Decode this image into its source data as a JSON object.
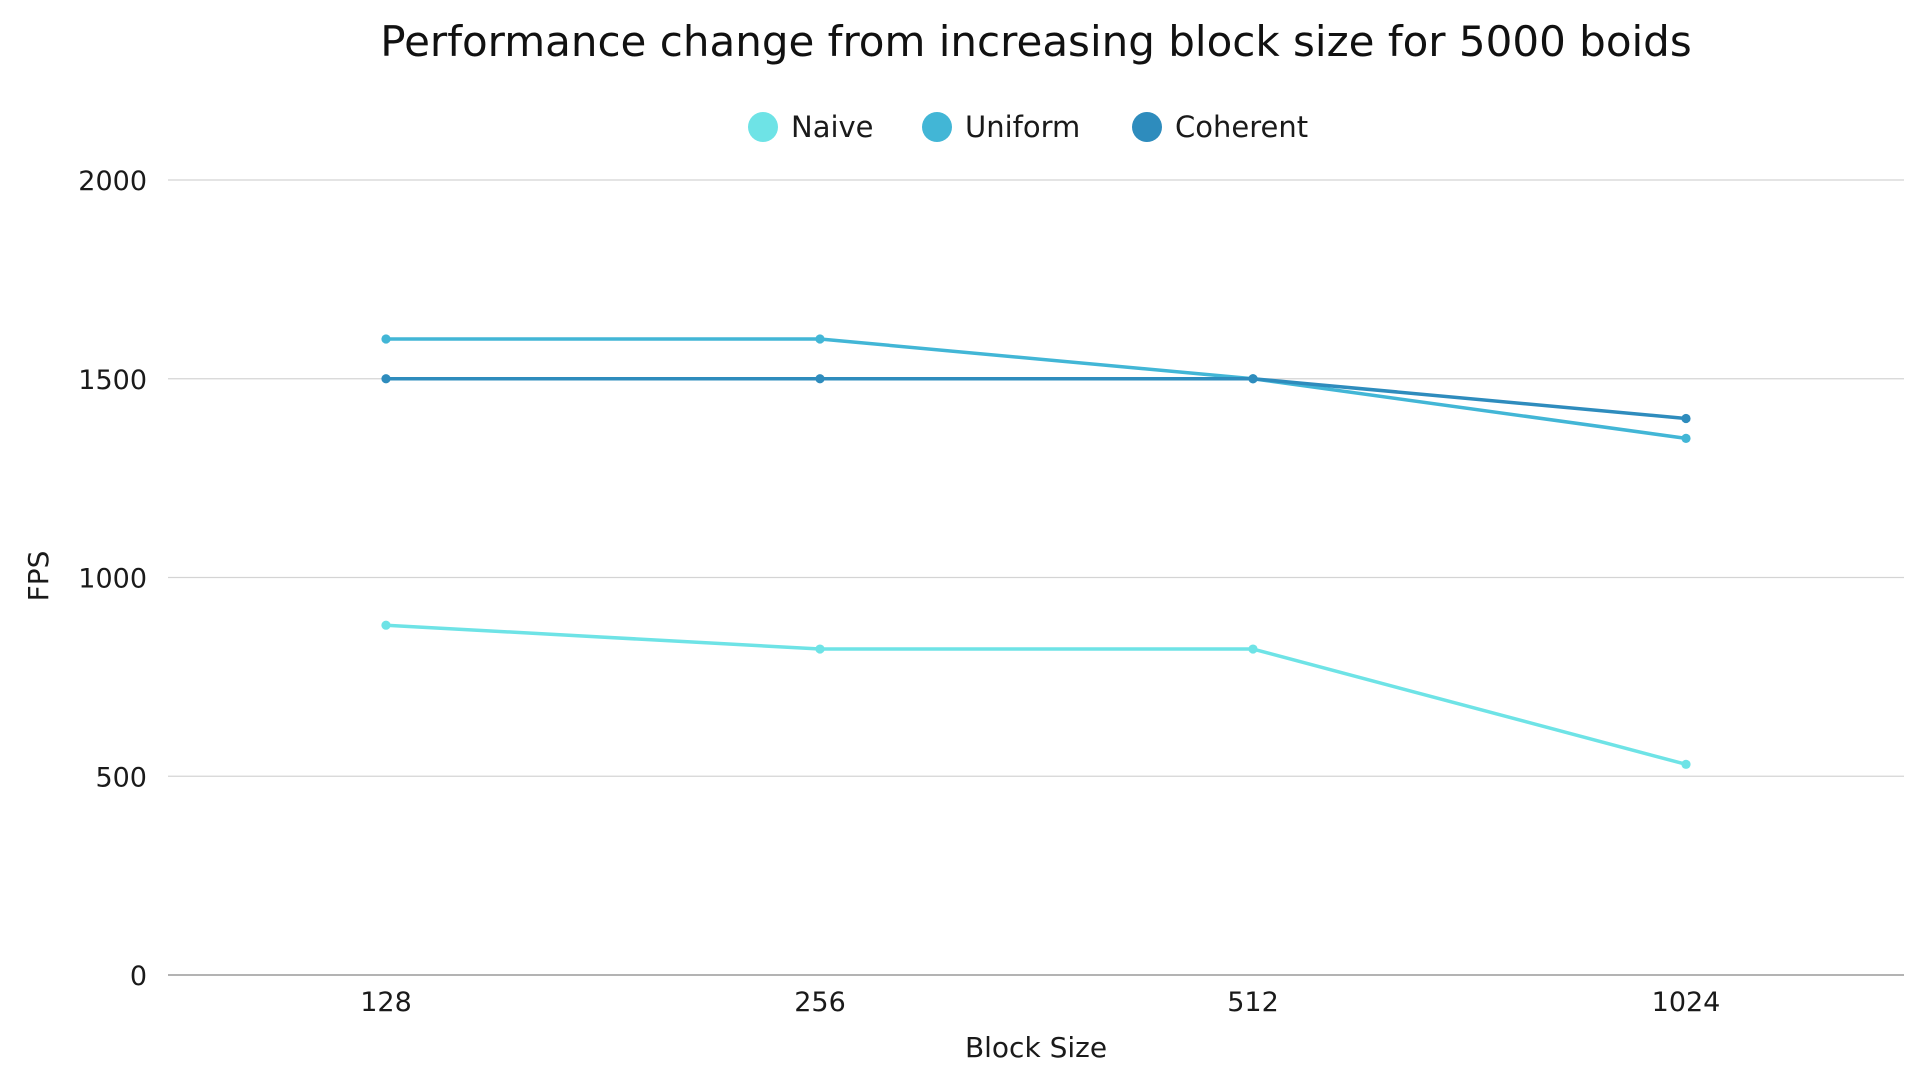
{
  "chart_data": {
    "type": "line",
    "title": "Performance change from increasing block size for 5000 boids",
    "xlabel": "Block Size",
    "ylabel": "FPS",
    "categories": [
      "128",
      "256",
      "512",
      "1024"
    ],
    "ylim": [
      0,
      2000
    ],
    "yticks": [
      "0",
      "500",
      "1000",
      "1500",
      "2000"
    ],
    "grid": "horizontal",
    "legend_position": "top-center",
    "series": [
      {
        "name": "Naive",
        "color": "#6ee3e6",
        "values": [
          880,
          820,
          820,
          530
        ]
      },
      {
        "name": "Uniform",
        "color": "#42b6d6",
        "values": [
          1600,
          1600,
          1500,
          1350
        ]
      },
      {
        "name": "Coherent",
        "color": "#2e8cbd",
        "values": [
          1500,
          1500,
          1500,
          1400
        ]
      }
    ]
  }
}
